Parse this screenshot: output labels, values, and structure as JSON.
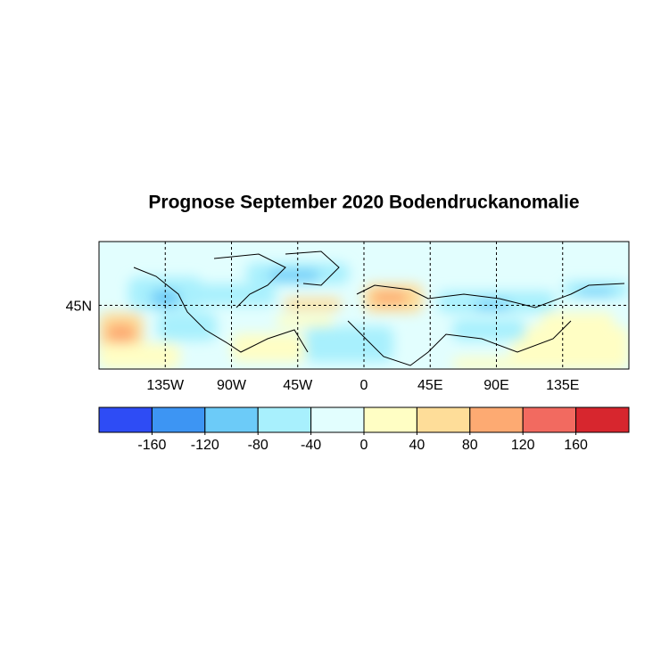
{
  "title": "Prognose September 2020 Bodendruckanomalie",
  "map": {
    "xlim": [
      -180,
      180
    ],
    "ylim": [
      0,
      90
    ],
    "xticks": [
      {
        "value": -135,
        "label": "135W"
      },
      {
        "value": -90,
        "label": "90W"
      },
      {
        "value": -45,
        "label": "45W"
      },
      0,
      {
        "value": 45,
        "label": "45E"
      },
      {
        "value": 90,
        "label": "90E"
      },
      {
        "value": 135,
        "label": "135E"
      }
    ],
    "yticks": [
      {
        "value": 45,
        "label": "45N"
      }
    ],
    "grid": true
  },
  "colorbar": {
    "lim": [
      -200,
      200
    ],
    "ticks": [
      -160,
      -120,
      -80,
      -40,
      0,
      40,
      80,
      120,
      160
    ],
    "colors": [
      "#2e4cf5",
      "#3d95f3",
      "#6ccbf8",
      "#a8f0fd",
      "#e2fefe",
      "#fffec4",
      "#fedd99",
      "#fdaa72",
      "#f26a60",
      "#d7262e"
    ]
  }
}
